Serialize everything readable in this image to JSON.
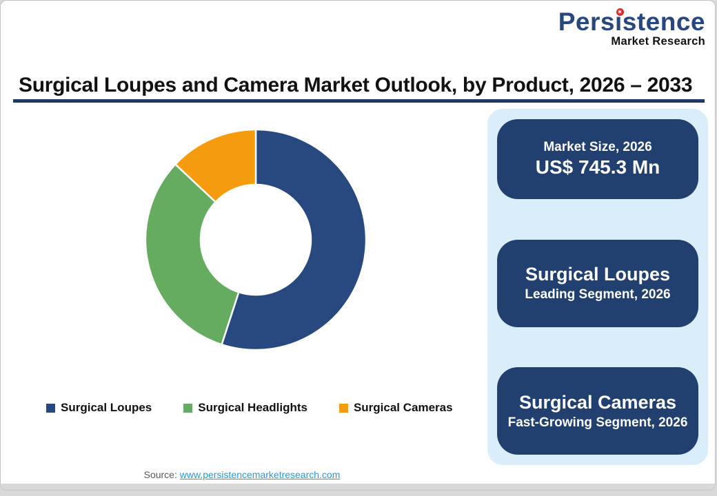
{
  "logo": {
    "brand": "Persistence",
    "tagline": "Market Research"
  },
  "title": "Surgical Loupes and Camera Market Outlook, by Product, 2026 – 2033",
  "chart_data": {
    "type": "pie",
    "subtype": "donut",
    "categories": [
      "Surgical Loupes",
      "Surgical Headlights",
      "Surgical Cameras"
    ],
    "values": [
      55,
      32,
      13
    ],
    "values_note": "percent share, estimated from arc angles (no data labels shown)",
    "colors": [
      "#28497F",
      "#65AC60",
      "#F79B0E"
    ],
    "donut_hole_ratio": 0.5,
    "start_angle_deg": 0,
    "direction": "clockwise",
    "legend_position": "bottom",
    "separator_color": "#ffffff"
  },
  "panel": {
    "cards": [
      {
        "top": "Market Size, 2026",
        "bottom": "US$ 745.3 Mn"
      },
      {
        "top": "Surgical Loupes",
        "bottom": "Leading Segment, 2026"
      },
      {
        "top": "Surgical Cameras",
        "bottom": "Fast-Growing Segment, 2026"
      }
    ]
  },
  "source": {
    "label": "Source:",
    "link_text": "www.persistencemarketresearch.com"
  },
  "colors": {
    "card_navy": "#21406F",
    "panel_bg": "#D9EDFA",
    "title_rule": "#1F3864",
    "link_blue": "#2E97D3",
    "logo_blue": "#27477E",
    "logo_dot_red": "#D92B2B"
  }
}
